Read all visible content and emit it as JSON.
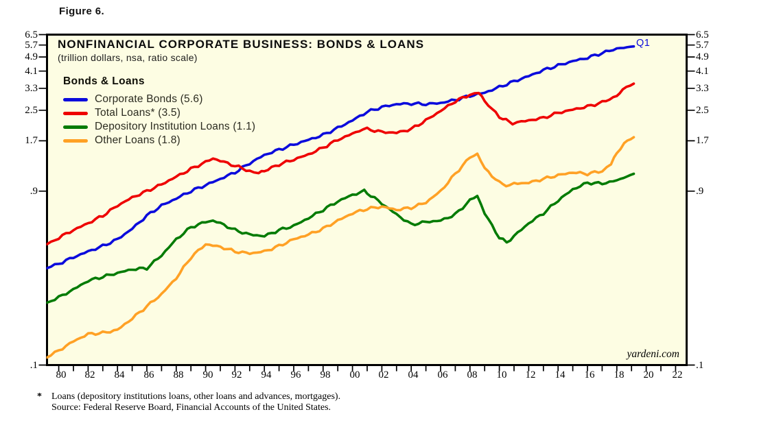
{
  "page": {
    "figure_label": "Figure 6."
  },
  "chart": {
    "title": "NONFINANCIAL CORPORATE BUSINESS: BONDS & LOANS",
    "subtitle": "(trillion dollars, nsa, ratio scale)",
    "legend_header": "Bonds & Loans",
    "latest_point_label": "Q1",
    "watermark": "yardeni.com"
  },
  "footnote": {
    "marker": "*",
    "line1": "Loans (depository institutions loans, other loans and advances, mortgages).",
    "line2": "Source: Federal Reserve Board, Financial Accounts of the United States."
  },
  "chart_data": {
    "type": "line",
    "title": "NONFINANCIAL CORPORATE BUSINESS: BONDS & LOANS",
    "units_note": "trillion dollars, nsa, ratio scale",
    "y_scale": "log",
    "grid": false,
    "legend_position": "top-left-inside",
    "plot_background": "#FDFDE3",
    "frame_color": "#000000",
    "x_range": [
      1979.2,
      2022.75
    ],
    "y_range": [
      0.1,
      6.5
    ],
    "y_tick_values": [
      6.5,
      5.7,
      4.9,
      4.1,
      3.3,
      2.5,
      1.7,
      0.9,
      0.1
    ],
    "y_tick_labels": [
      "6.5",
      "5.7",
      "4.9",
      "4.1",
      "3.3",
      "2.5",
      "1.7",
      ".9",
      ".1"
    ],
    "x_tick_years": [
      1980,
      1982,
      1984,
      1986,
      1988,
      1990,
      1992,
      1994,
      1996,
      1998,
      2000,
      2002,
      2004,
      2006,
      2008,
      2010,
      2012,
      2014,
      2016,
      2018,
      2020,
      2022
    ],
    "x_tick_labels": [
      "80",
      "82",
      "84",
      "86",
      "88",
      "90",
      "92",
      "94",
      "96",
      "98",
      "00",
      "02",
      "04",
      "06",
      "08",
      "10",
      "12",
      "14",
      "16",
      "18",
      "20",
      "22"
    ],
    "x_minor_tick_step": 1,
    "series": [
      {
        "name": "Corporate Bonds",
        "legend": "Corporate Bonds (5.6)",
        "latest_value": 5.6,
        "color": "#0B0BDC",
        "points": [
          [
            1979.2,
            0.34
          ],
          [
            1980,
            0.36
          ],
          [
            1981,
            0.39
          ],
          [
            1982,
            0.42
          ],
          [
            1983,
            0.45
          ],
          [
            1984,
            0.49
          ],
          [
            1985,
            0.56
          ],
          [
            1986,
            0.66
          ],
          [
            1987,
            0.75
          ],
          [
            1988,
            0.82
          ],
          [
            1989,
            0.9
          ],
          [
            1990,
            0.97
          ],
          [
            1991,
            1.05
          ],
          [
            1992,
            1.14
          ],
          [
            1993,
            1.28
          ],
          [
            1994,
            1.42
          ],
          [
            1995,
            1.52
          ],
          [
            1996,
            1.62
          ],
          [
            1997,
            1.72
          ],
          [
            1998,
            1.83
          ],
          [
            1999,
            2.0
          ],
          [
            2000,
            2.2
          ],
          [
            2001,
            2.45
          ],
          [
            2002,
            2.6
          ],
          [
            2003,
            2.7
          ],
          [
            2004,
            2.72
          ],
          [
            2005,
            2.7
          ],
          [
            2006,
            2.74
          ],
          [
            2007,
            2.85
          ],
          [
            2008,
            3.0
          ],
          [
            2009,
            3.12
          ],
          [
            2010,
            3.35
          ],
          [
            2011,
            3.6
          ],
          [
            2012,
            3.85
          ],
          [
            2013,
            4.15
          ],
          [
            2014,
            4.4
          ],
          [
            2015,
            4.65
          ],
          [
            2016,
            4.85
          ],
          [
            2017,
            5.15
          ],
          [
            2018,
            5.45
          ],
          [
            2019.15,
            5.6
          ]
        ]
      },
      {
        "name": "Total Loans",
        "legend": "Total Loans* (3.5)",
        "latest_value": 3.5,
        "color": "#EE0000",
        "points": [
          [
            1979.2,
            0.46
          ],
          [
            1980,
            0.5
          ],
          [
            1981,
            0.55
          ],
          [
            1982,
            0.6
          ],
          [
            1983,
            0.66
          ],
          [
            1984,
            0.75
          ],
          [
            1985,
            0.83
          ],
          [
            1986,
            0.9
          ],
          [
            1987,
            0.98
          ],
          [
            1988,
            1.08
          ],
          [
            1989,
            1.19
          ],
          [
            1990,
            1.3
          ],
          [
            1990.5,
            1.36
          ],
          [
            1991,
            1.32
          ],
          [
            1992,
            1.24
          ],
          [
            1993,
            1.16
          ],
          [
            1993.6,
            1.13
          ],
          [
            1994,
            1.16
          ],
          [
            1995,
            1.26
          ],
          [
            1996,
            1.34
          ],
          [
            1997,
            1.43
          ],
          [
            1998,
            1.56
          ],
          [
            1999,
            1.72
          ],
          [
            2000,
            1.86
          ],
          [
            2000.7,
            1.96
          ],
          [
            2001,
            1.97
          ],
          [
            2002,
            1.9
          ],
          [
            2003,
            1.88
          ],
          [
            2004,
            1.97
          ],
          [
            2005,
            2.2
          ],
          [
            2006,
            2.48
          ],
          [
            2007,
            2.8
          ],
          [
            2008,
            3.05
          ],
          [
            2008.6,
            3.14
          ],
          [
            2009,
            2.8
          ],
          [
            2010,
            2.3
          ],
          [
            2010.9,
            2.12
          ],
          [
            2011.5,
            2.16
          ],
          [
            2012,
            2.2
          ],
          [
            2013,
            2.27
          ],
          [
            2014,
            2.42
          ],
          [
            2015,
            2.52
          ],
          [
            2016,
            2.62
          ],
          [
            2017,
            2.76
          ],
          [
            2018,
            3.0
          ],
          [
            2018.4,
            3.25
          ],
          [
            2019.15,
            3.5
          ]
        ]
      },
      {
        "name": "Depository Institution Loans",
        "legend": "Depository Institution Loans (1.1)",
        "latest_value": 1.1,
        "color": "#037B03",
        "points": [
          [
            1979.2,
            0.22
          ],
          [
            1980,
            0.235
          ],
          [
            1981,
            0.26
          ],
          [
            1982,
            0.29
          ],
          [
            1983,
            0.305
          ],
          [
            1984,
            0.32
          ],
          [
            1985,
            0.335
          ],
          [
            1986,
            0.34
          ],
          [
            1987,
            0.4
          ],
          [
            1988,
            0.49
          ],
          [
            1989,
            0.57
          ],
          [
            1990,
            0.61
          ],
          [
            1990.5,
            0.62
          ],
          [
            1991,
            0.6
          ],
          [
            1992,
            0.55
          ],
          [
            1993,
            0.52
          ],
          [
            1994,
            0.51
          ],
          [
            1995,
            0.55
          ],
          [
            1996,
            0.58
          ],
          [
            1997,
            0.64
          ],
          [
            1998,
            0.71
          ],
          [
            1999,
            0.79
          ],
          [
            2000,
            0.86
          ],
          [
            2000.8,
            0.9
          ],
          [
            2001,
            0.88
          ],
          [
            2002,
            0.77
          ],
          [
            2003,
            0.67
          ],
          [
            2004,
            0.59
          ],
          [
            2005,
            0.61
          ],
          [
            2006,
            0.62
          ],
          [
            2007,
            0.67
          ],
          [
            2008,
            0.8
          ],
          [
            2008.5,
            0.85
          ],
          [
            2009,
            0.68
          ],
          [
            2010,
            0.5
          ],
          [
            2010.5,
            0.47
          ],
          [
            2011,
            0.51
          ],
          [
            2012,
            0.6
          ],
          [
            2013,
            0.68
          ],
          [
            2014,
            0.8
          ],
          [
            2015,
            0.92
          ],
          [
            2016,
            1.0
          ],
          [
            2017,
            0.99
          ],
          [
            2018,
            1.03
          ],
          [
            2019.15,
            1.12
          ]
        ]
      },
      {
        "name": "Other Loans",
        "legend": "Other Loans (1.8)",
        "latest_value": 1.8,
        "color": "#FFA125",
        "points": [
          [
            1979.2,
            0.11
          ],
          [
            1980,
            0.12
          ],
          [
            1981,
            0.135
          ],
          [
            1982,
            0.148
          ],
          [
            1983,
            0.15
          ],
          [
            1984,
            0.156
          ],
          [
            1985,
            0.18
          ],
          [
            1986,
            0.21
          ],
          [
            1987,
            0.245
          ],
          [
            1988,
            0.3
          ],
          [
            1989,
            0.39
          ],
          [
            1990,
            0.46
          ],
          [
            1991,
            0.445
          ],
          [
            1992,
            0.42
          ],
          [
            1993,
            0.41
          ],
          [
            1994,
            0.42
          ],
          [
            1995,
            0.45
          ],
          [
            1996,
            0.49
          ],
          [
            1997,
            0.52
          ],
          [
            1998,
            0.56
          ],
          [
            1999,
            0.62
          ],
          [
            2000,
            0.68
          ],
          [
            2001,
            0.72
          ],
          [
            2002,
            0.74
          ],
          [
            2003,
            0.71
          ],
          [
            2004,
            0.73
          ],
          [
            2005,
            0.78
          ],
          [
            2006,
            0.9
          ],
          [
            2007,
            1.12
          ],
          [
            2008,
            1.38
          ],
          [
            2008.5,
            1.44
          ],
          [
            2009,
            1.2
          ],
          [
            2010,
            1.0
          ],
          [
            2010.7,
            0.96
          ],
          [
            2011,
            0.99
          ],
          [
            2012,
            1.0
          ],
          [
            2013,
            1.05
          ],
          [
            2014,
            1.1
          ],
          [
            2015,
            1.14
          ],
          [
            2016,
            1.12
          ],
          [
            2017,
            1.16
          ],
          [
            2017.6,
            1.28
          ],
          [
            2018,
            1.45
          ],
          [
            2018.5,
            1.65
          ],
          [
            2019.15,
            1.78
          ]
        ]
      }
    ]
  }
}
